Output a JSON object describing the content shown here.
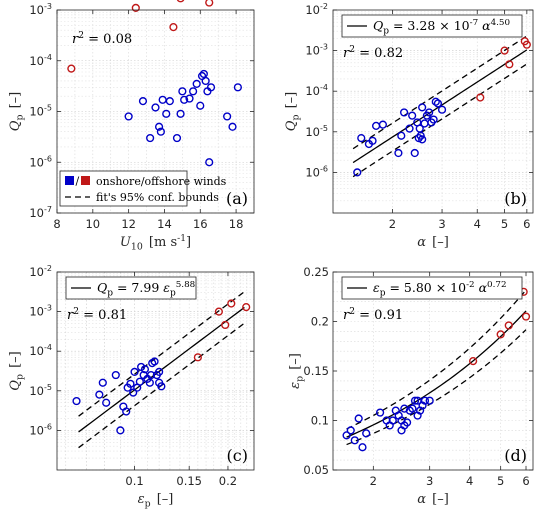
{
  "chart_data": [
    {
      "type": "scatter",
      "panel_label": "(a)",
      "xlabel_main": "U",
      "xlabel_sub": "10",
      "xlabel_unit": "[m s",
      "xlabel_unit_sup": "-1",
      "xlabel_unit_end": "]",
      "ylabel_main": "Q",
      "ylabel_sub": "p",
      "ylabel_unit": "[–]",
      "xlim": [
        8,
        19
      ],
      "ylim_log10": [
        -7,
        -3
      ],
      "xticks": [
        {
          "v": 8,
          "label": "8"
        },
        {
          "v": 10,
          "label": "10"
        },
        {
          "v": 12,
          "label": "12"
        },
        {
          "v": 14,
          "label": "14"
        },
        {
          "v": 16,
          "label": "16"
        },
        {
          "v": 18,
          "label": "18"
        }
      ],
      "yticks": [
        {
          "e": -7,
          "label": "10",
          "sup": "-7"
        },
        {
          "e": -6,
          "label": "10",
          "sup": "-6"
        },
        {
          "e": -5,
          "label": "10",
          "sup": "-5"
        },
        {
          "e": -4,
          "label": "10",
          "sup": "-4"
        },
        {
          "e": -3,
          "label": "10",
          "sup": "-3"
        }
      ],
      "r2_text": "r",
      "r2_sup": "2",
      "r2_value": "= 0.08",
      "legend": {
        "markers_label": "onshore/offshore winds",
        "fit_label": "fit's 95% conf. bounds"
      },
      "series": [
        {
          "name": "onshore",
          "color": "#0000c8",
          "points": [
            [
              12.0,
              8e-06
            ],
            [
              12.8,
              1.6e-05
            ],
            [
              13.2,
              3e-06
            ],
            [
              13.5,
              1.2e-05
            ],
            [
              13.7,
              5e-06
            ],
            [
              13.8,
              4e-06
            ],
            [
              13.9,
              1.7e-05
            ],
            [
              14.1,
              9e-06
            ],
            [
              14.3,
              1.6e-05
            ],
            [
              14.7,
              3e-06
            ],
            [
              14.9,
              9e-06
            ],
            [
              15.0,
              2.5e-05
            ],
            [
              15.1,
              1.7e-05
            ],
            [
              15.4,
              1.8e-05
            ],
            [
              15.6,
              2.5e-05
            ],
            [
              15.8,
              3.5e-05
            ],
            [
              16.0,
              1.3e-05
            ],
            [
              16.1,
              5e-05
            ],
            [
              16.2,
              5.5e-05
            ],
            [
              16.3,
              4e-05
            ],
            [
              16.4,
              2.5e-05
            ],
            [
              16.5,
              1e-06
            ],
            [
              16.6,
              3e-05
            ],
            [
              17.5,
              8e-06
            ],
            [
              17.8,
              5e-06
            ],
            [
              18.1,
              3e-05
            ]
          ]
        },
        {
          "name": "offshore",
          "color": "#c01818",
          "points": [
            [
              8.8,
              7e-05
            ],
            [
              12.4,
              0.0011
            ],
            [
              14.5,
              0.00046
            ],
            [
              14.9,
              0.0017
            ],
            [
              16.5,
              0.0014
            ]
          ]
        }
      ]
    },
    {
      "type": "scatter",
      "panel_label": "(b)",
      "xlabel_main": "α",
      "xlabel_unit": "[–]",
      "ylabel_main": "Q",
      "ylabel_sub": "p",
      "ylabel_unit": "[–]",
      "xlim_log10": [
        0.09,
        0.8
      ],
      "ylim_log10": [
        -7,
        -2
      ],
      "xticks": [
        {
          "v": 2,
          "label": "2"
        },
        {
          "v": 3,
          "label": "3"
        },
        {
          "v": 4,
          "label": "4"
        },
        {
          "v": 5,
          "label": "5"
        },
        {
          "v": 6,
          "label": "6"
        }
      ],
      "yticks": [
        {
          "e": -6,
          "label": "10",
          "sup": "-6"
        },
        {
          "e": -5,
          "label": "10",
          "sup": "-5"
        },
        {
          "e": -4,
          "label": "10",
          "sup": "-4"
        },
        {
          "e": -3,
          "label": "10",
          "sup": "-3"
        },
        {
          "e": -2,
          "label": "10",
          "sup": "-2"
        }
      ],
      "r2_text": "r",
      "r2_sup": "2",
      "r2_value": "= 0.82",
      "fit": {
        "coef": 3.28e-07,
        "exp": 4.5,
        "x_range": [
          1.45,
          6.0
        ],
        "upper_factor": 2.2,
        "lower_factor": 0.45
      },
      "equation": {
        "lhs": "Q",
        "lhs_sub": "p",
        "rhs": "= 3.28 × 10",
        "rhs_sup": "-7",
        "var": "α",
        "var_sup": "4.50"
      },
      "series": [
        {
          "name": "onshore",
          "color": "#0000c8",
          "points": [
            [
              1.5,
              1e-06
            ],
            [
              1.55,
              7e-06
            ],
            [
              1.65,
              5e-06
            ],
            [
              1.7,
              6e-06
            ],
            [
              1.75,
              1.4e-05
            ],
            [
              1.85,
              1.5e-05
            ],
            [
              2.1,
              3e-06
            ],
            [
              2.15,
              8e-06
            ],
            [
              2.2,
              3e-05
            ],
            [
              2.3,
              1.2e-05
            ],
            [
              2.35,
              2.5e-05
            ],
            [
              2.4,
              3e-06
            ],
            [
              2.45,
              1.7e-05
            ],
            [
              2.5,
              1.2e-05
            ],
            [
              2.55,
              6.5e-06
            ],
            [
              2.6,
              1.6e-05
            ],
            [
              2.65,
              2.5e-05
            ],
            [
              2.7,
              3e-05
            ],
            [
              2.75,
              1.7e-05
            ],
            [
              2.8,
              2e-05
            ],
            [
              2.9,
              5e-05
            ],
            [
              3.0,
              3.5e-05
            ],
            [
              2.48,
              7e-06
            ],
            [
              2.52,
              8e-06
            ],
            [
              2.55,
              4e-05
            ],
            [
              2.85,
              5.5e-05
            ]
          ]
        },
        {
          "name": "offshore",
          "color": "#c01818",
          "points": [
            [
              4.1,
              7e-05
            ],
            [
              5.0,
              0.001
            ],
            [
              5.2,
              0.00046
            ],
            [
              5.9,
              0.0017
            ],
            [
              6.0,
              0.0014
            ]
          ]
        }
      ]
    },
    {
      "type": "scatter",
      "panel_label": "(c)",
      "xlabel_main": "ε",
      "xlabel_sub": "p",
      "xlabel_unit": "[–]",
      "ylabel_main": "Q",
      "ylabel_sub": "p",
      "ylabel_unit": "[–]",
      "xlim_log10": [
        -1.25,
        -0.615
      ],
      "ylim_log10": [
        -7,
        -2
      ],
      "xticks": [
        {
          "v": 0.1,
          "label": "0.1"
        },
        {
          "v": 0.15,
          "label": "0.15"
        },
        {
          "v": 0.2,
          "label": "0.2"
        }
      ],
      "yticks": [
        {
          "e": -6,
          "label": "10",
          "sup": "-6"
        },
        {
          "e": -5,
          "label": "10",
          "sup": "-5"
        },
        {
          "e": -4,
          "label": "10",
          "sup": "-4"
        },
        {
          "e": -3,
          "label": "10",
          "sup": "-3"
        },
        {
          "e": -2,
          "label": "10",
          "sup": "-2"
        }
      ],
      "r2_text": "r",
      "r2_sup": "2",
      "r2_value": "= 0.81",
      "fit": {
        "coef": 7.99,
        "exp": 5.88,
        "x_range": [
          0.066,
          0.226
        ],
        "upper_factor": 2.5,
        "lower_factor": 0.4
      },
      "equation": {
        "lhs": "Q",
        "lhs_sub": "p",
        "rhs": "= 7.99",
        "var": "ε",
        "var_sub": "p",
        "var_sup": "5.88"
      },
      "series": [
        {
          "name": "onshore",
          "color": "#0000c8",
          "points": [
            [
              0.065,
              5.5e-06
            ],
            [
              0.077,
              8e-06
            ],
            [
              0.079,
              1.6e-05
            ],
            [
              0.081,
              5e-06
            ],
            [
              0.087,
              2.5e-05
            ],
            [
              0.09,
              1e-06
            ],
            [
              0.092,
              4e-06
            ],
            [
              0.094,
              3e-06
            ],
            [
              0.095,
              1.2e-05
            ],
            [
              0.097,
              1.5e-05
            ],
            [
              0.099,
              9e-06
            ],
            [
              0.1,
              3e-05
            ],
            [
              0.102,
              1.2e-05
            ],
            [
              0.104,
              1.7e-05
            ],
            [
              0.105,
              4e-05
            ],
            [
              0.107,
              2.5e-05
            ],
            [
              0.108,
              3.5e-05
            ],
            [
              0.11,
              2e-05
            ],
            [
              0.112,
              1.6e-05
            ],
            [
              0.113,
              2.5e-05
            ],
            [
              0.114,
              5e-05
            ],
            [
              0.116,
              5.5e-05
            ],
            [
              0.118,
              2.5e-05
            ],
            [
              0.12,
              3e-05
            ],
            [
              0.12,
              1.6e-05
            ],
            [
              0.122,
              1.3e-05
            ]
          ]
        },
        {
          "name": "offshore",
          "color": "#c01818",
          "points": [
            [
              0.16,
              7e-05
            ],
            [
              0.187,
              0.001
            ],
            [
              0.196,
              0.00046
            ],
            [
              0.205,
              0.0016
            ],
            [
              0.229,
              0.0013
            ]
          ]
        }
      ]
    },
    {
      "type": "scatter",
      "panel_label": "(d)",
      "xlabel_main": "α",
      "xlabel_unit": "[–]",
      "ylabel_main": "ε",
      "ylabel_sub": "p",
      "ylabel_unit": "[–]",
      "xlim_log10": [
        0.175,
        0.8
      ],
      "ylim": [
        0.05,
        0.25
      ],
      "xticks": [
        {
          "v": 2,
          "label": "2"
        },
        {
          "v": 3,
          "label": "3"
        },
        {
          "v": 4,
          "label": "4"
        },
        {
          "v": 5,
          "label": "5"
        },
        {
          "v": 6,
          "label": "6"
        }
      ],
      "yticks": [
        {
          "v": 0.05,
          "label": "0.05"
        },
        {
          "v": 0.1,
          "label": "0.1"
        },
        {
          "v": 0.15,
          "label": "0.15"
        },
        {
          "v": 0.2,
          "label": "0.2"
        },
        {
          "v": 0.25,
          "label": "0.25"
        }
      ],
      "r2_text": "r",
      "r2_sup": "2",
      "r2_value": "= 0.91",
      "fit": {
        "coef": 0.058,
        "exp": 0.72,
        "x_range": [
          1.65,
          6.0
        ],
        "upper_factor": 1.1,
        "lower_factor": 0.91
      },
      "equation": {
        "lhs": "ε",
        "lhs_sub": "p",
        "rhs": "= 5.80 × 10",
        "rhs_sup": "-2",
        "var": "α",
        "var_sup": "0.72"
      },
      "series": [
        {
          "name": "onshore",
          "color": "#0000c8",
          "points": [
            [
              1.65,
              0.085
            ],
            [
              1.7,
              0.09
            ],
            [
              1.75,
              0.08
            ],
            [
              1.8,
              0.102
            ],
            [
              1.85,
              0.073
            ],
            [
              1.9,
              0.087
            ],
            [
              2.1,
              0.108
            ],
            [
              2.2,
              0.1
            ],
            [
              2.25,
              0.095
            ],
            [
              2.35,
              0.11
            ],
            [
              2.4,
              0.105
            ],
            [
              2.45,
              0.1
            ],
            [
              2.5,
              0.112
            ],
            [
              2.5,
              0.095
            ],
            [
              2.55,
              0.098
            ],
            [
              2.6,
              0.11
            ],
            [
              2.65,
              0.112
            ],
            [
              2.7,
              0.12
            ],
            [
              2.75,
              0.105
            ],
            [
              2.8,
              0.11
            ],
            [
              2.85,
              0.115
            ],
            [
              2.9,
              0.12
            ],
            [
              3.0,
              0.12
            ],
            [
              2.45,
              0.09
            ],
            [
              2.3,
              0.1
            ],
            [
              2.75,
              0.12
            ]
          ]
        },
        {
          "name": "offshore",
          "color": "#c01818",
          "points": [
            [
              4.1,
              0.16
            ],
            [
              5.0,
              0.187
            ],
            [
              5.3,
              0.196
            ],
            [
              5.9,
              0.23
            ],
            [
              6.0,
              0.205
            ]
          ]
        }
      ]
    }
  ]
}
